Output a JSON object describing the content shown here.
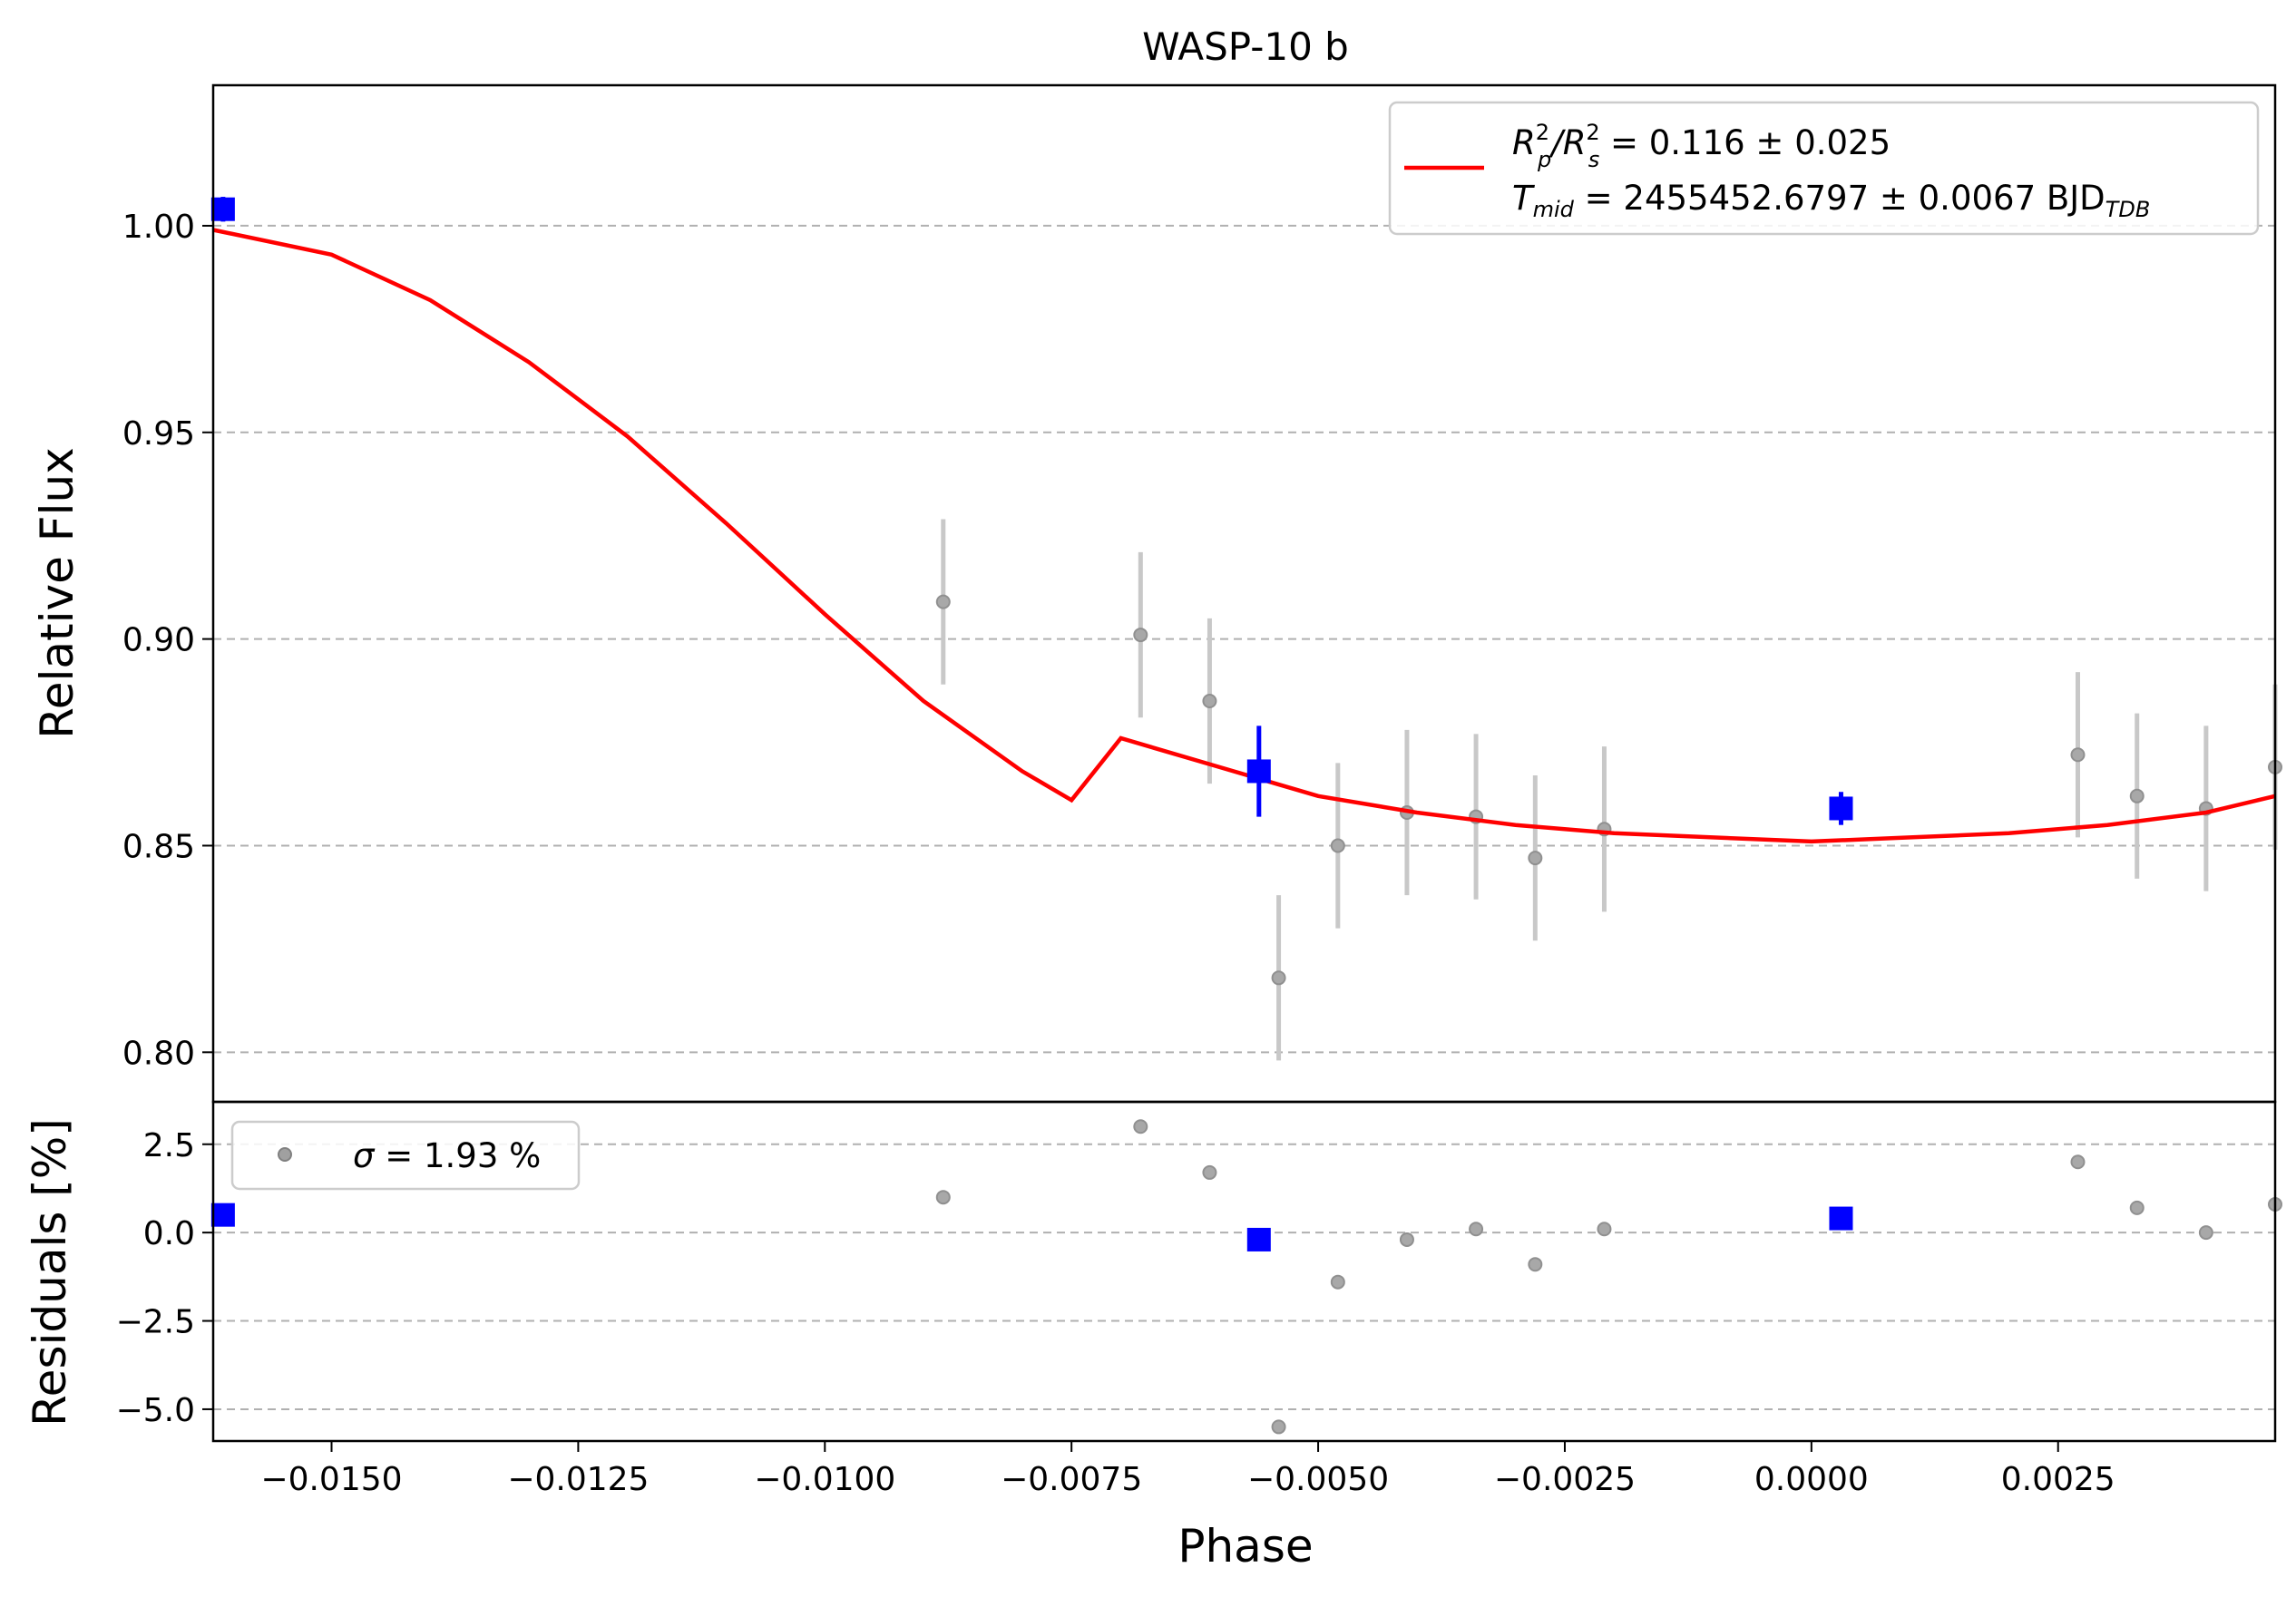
{
  "chart_data": {
    "type": "scatter",
    "title": "WASP-10 b",
    "xlabel": "Phase",
    "colors": {
      "model": "#ff0000",
      "binned": "#0000ff",
      "raw": "#808080",
      "grid": "#b0b0b0"
    },
    "grid": "horizontal dashed",
    "xlim": [
      -0.0162,
      0.0047
    ],
    "xticks": [
      -0.015,
      -0.0125,
      -0.01,
      -0.0075,
      -0.005,
      -0.0025,
      0.0,
      0.0025
    ],
    "xtick_labels": [
      "−0.0150",
      "−0.0125",
      "−0.0100",
      "−0.0075",
      "−0.0050",
      "−0.0025",
      "0.0000",
      "0.0025"
    ],
    "top": {
      "ylabel": "Relative Flux",
      "ylim": [
        0.788,
        1.034
      ],
      "yticks": [
        0.8,
        0.85,
        0.9,
        0.95,
        1.0
      ],
      "ytick_labels": [
        "0.80",
        "0.85",
        "0.90",
        "0.95",
        "1.00"
      ],
      "legend": {
        "position": "upper right",
        "line1": {
          "a": "R",
          "a_sup": "2",
          "a_sub": "p",
          "b": "/R",
          "b_sup": "2",
          "b_sub": "s",
          "rest": " = 0.116 ± 0.025"
        },
        "line2": {
          "a": "T",
          "a_sub": "mid",
          "rest": " = 2455452.6797 ± 0.0067 BJD",
          "unit_sub": "TDB"
        }
      },
      "raw": {
        "x": [
          -0.0088,
          -0.0068,
          -0.0061,
          -0.0054,
          -0.0048,
          -0.0041,
          -0.0034,
          -0.0028,
          -0.0021,
          0.0027,
          0.0033,
          0.004,
          0.0047
        ],
        "y": [
          0.909,
          0.901,
          0.885,
          0.818,
          0.85,
          0.858,
          0.857,
          0.847,
          0.854,
          0.872,
          0.862,
          0.859,
          0.869
        ],
        "err": [
          0.02,
          0.02,
          0.02,
          0.02,
          0.02,
          0.02,
          0.02,
          0.02,
          0.02,
          0.02,
          0.02,
          0.02,
          0.02
        ]
      },
      "binned": {
        "x": [
          -0.0161,
          -0.0056,
          0.0003
        ],
        "y": [
          1.004,
          0.868,
          0.859
        ],
        "err": [
          0.003,
          0.011,
          0.004
        ]
      },
      "model": {
        "x": [
          -0.0162,
          -0.015,
          -0.014,
          -0.013,
          -0.012,
          -0.011,
          -0.01,
          -0.009,
          -0.008,
          -0.0075,
          -0.007,
          -0.006,
          -0.005,
          -0.004,
          -0.003,
          -0.002,
          -0.001,
          0.0,
          0.001,
          0.002,
          0.003,
          0.004,
          0.0047
        ],
        "y": [
          0.999,
          0.993,
          0.982,
          0.967,
          0.949,
          0.928,
          0.906,
          0.885,
          0.868,
          0.861,
          0.876,
          0.869,
          0.862,
          0.858,
          0.855,
          0.853,
          0.852,
          0.851,
          0.852,
          0.853,
          0.855,
          0.858,
          0.862
        ]
      }
    },
    "bottom": {
      "ylabel": "Residuals [%]",
      "ylim": [
        -5.9,
        3.7
      ],
      "yticks": [
        -5.0,
        -2.5,
        0.0,
        2.5
      ],
      "ytick_labels": [
        "−5.0",
        "−2.5",
        "0.0",
        "2.5"
      ],
      "legend": {
        "position": "upper left",
        "sigma_symbol": "σ",
        "text": " = 1.93 %"
      },
      "raw": {
        "x": [
          -0.0088,
          -0.0068,
          -0.0061,
          -0.0054,
          -0.0048,
          -0.0041,
          -0.0034,
          -0.0028,
          -0.0021,
          0.0027,
          0.0033,
          0.004,
          0.0047
        ],
        "y": [
          1.0,
          3.0,
          1.7,
          -5.5,
          -1.4,
          -0.2,
          0.1,
          -0.9,
          0.1,
          2.0,
          0.7,
          0.0,
          0.8
        ]
      },
      "binned": {
        "x": [
          -0.0161,
          -0.0056,
          0.0003
        ],
        "y": [
          0.5,
          -0.2,
          0.4
        ]
      }
    }
  }
}
